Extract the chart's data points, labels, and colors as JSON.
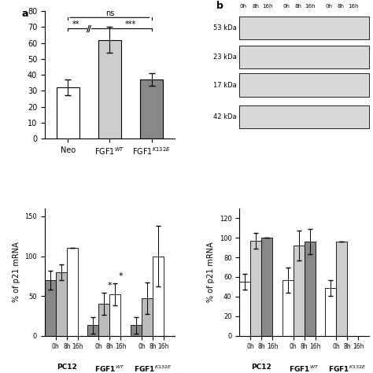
{
  "panel_a": {
    "categories": [
      "Neo",
      "FGF1$^{WT}$",
      "FGF1$^{K132E}$"
    ],
    "values": [
      32,
      62,
      37
    ],
    "errors": [
      5,
      8,
      4
    ],
    "colors": [
      "#ffffff",
      "#cccccc",
      "#888888"
    ],
    "ylim": [
      0,
      80
    ]
  },
  "panel_c": {
    "groups": [
      "PC12",
      "FGF1$^{WT}$",
      "FGF1$^{K132E}$"
    ],
    "timepoints": [
      "0h",
      "8h",
      "16h"
    ],
    "values": [
      [
        70,
        80,
        110
      ],
      [
        13,
        40,
        52
      ],
      [
        13,
        47,
        100
      ]
    ],
    "errors": [
      [
        12,
        10,
        0
      ],
      [
        10,
        14,
        14
      ],
      [
        10,
        20,
        38
      ]
    ],
    "colors": [
      "#888888",
      "#bbbbbb",
      "#ffffff"
    ],
    "ylabel": "% of p21 mRNA",
    "ylim": [
      0,
      160
    ],
    "yticks": [
      0,
      50,
      100,
      150
    ]
  },
  "panel_d": {
    "groups": [
      "PC12",
      "FGF1$^{WT}$",
      "FGF1$^{K132E}$"
    ],
    "timepoints": [
      "0h",
      "8h",
      "16h"
    ],
    "values": [
      [
        55,
        97,
        100
      ],
      [
        57,
        92,
        96
      ],
      [
        49,
        96,
        0
      ]
    ],
    "errors": [
      [
        8,
        8,
        0
      ],
      [
        13,
        15,
        13
      ],
      [
        8,
        0,
        0
      ]
    ],
    "colors": [
      "#ffffff",
      "#cccccc",
      "#888888"
    ],
    "ylabel": "% of p21 mRNA",
    "ylim": [
      0,
      130
    ],
    "yticks": [
      0,
      20,
      40,
      60,
      80,
      100,
      120
    ]
  },
  "kda_labels": [
    "53 kDa",
    "23 kDa",
    "17 kDa",
    "42 kDa"
  ]
}
